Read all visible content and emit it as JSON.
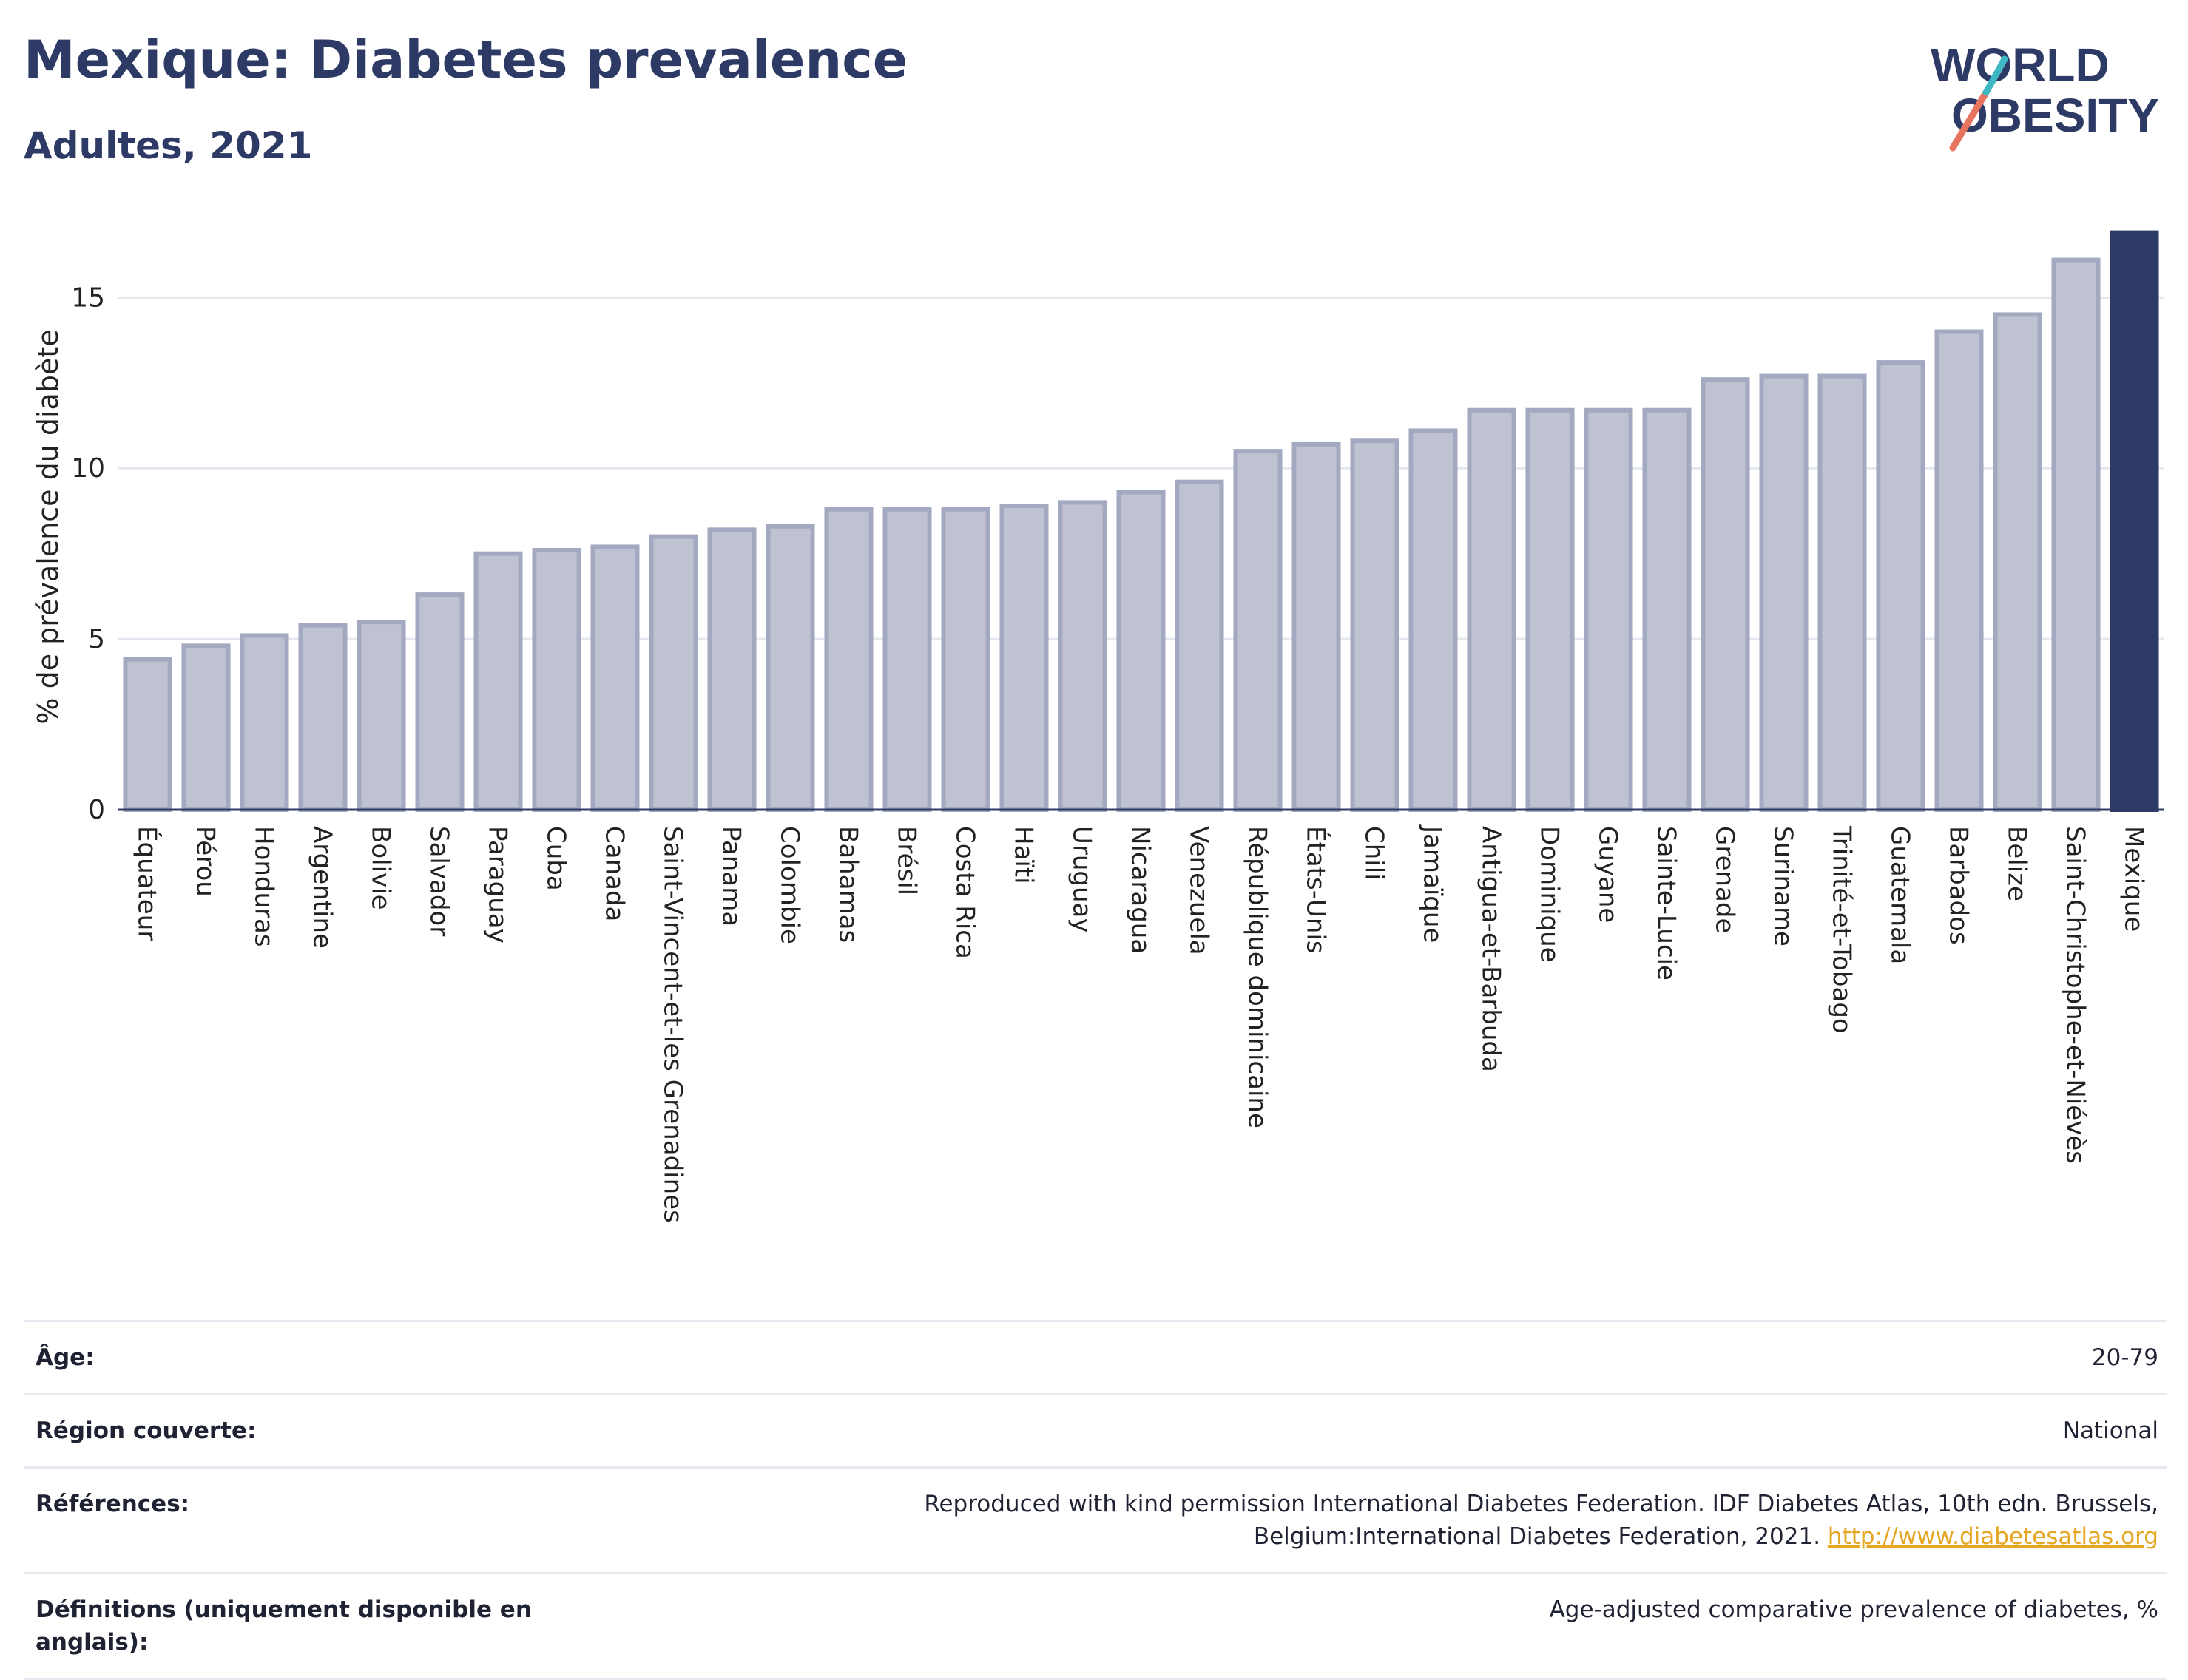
{
  "header": {
    "title": "Mexique: Diabetes prevalence",
    "subtitle": "Adultes, 2021"
  },
  "logo": {
    "line1": "WORLD",
    "line2": "OBESITY"
  },
  "chart_data": {
    "type": "bar",
    "ylabel": "% de prévalence du diabète",
    "ylim": [
      0,
      17
    ],
    "yticks": [
      0,
      5,
      10,
      15
    ],
    "grid": true,
    "highlight": "Mexique",
    "colors": {
      "bar": "#bfc3d1",
      "bar_border": "#a3a9c0",
      "highlight": "#2d3a66",
      "grid": "#e3e7ee",
      "axis": "#2d3a66"
    },
    "categories": [
      "Équateur",
      "Pérou",
      "Honduras",
      "Argentine",
      "Bolivie",
      "Salvador",
      "Paraguay",
      "Cuba",
      "Canada",
      "Saint-Vincent-et-les Grenadines",
      "Panama",
      "Colombie",
      "Bahamas",
      "Brésil",
      "Costa Rica",
      "Haïti",
      "Uruguay",
      "Nicaragua",
      "Venezuela",
      "République dominicaine",
      "États-Unis",
      "Chili",
      "Jamaïque",
      "Antigua-et-Barbuda",
      "Dominique",
      "Guyane",
      "Sainte-Lucie",
      "Grenade",
      "Suriname",
      "Trinité-et-Tobago",
      "Guatemala",
      "Barbados",
      "Belize",
      "Saint-Christophe-et-Niévès",
      "Mexique"
    ],
    "values": [
      4.4,
      4.8,
      5.1,
      5.4,
      5.5,
      6.3,
      7.5,
      7.6,
      7.7,
      8.0,
      8.2,
      8.3,
      8.8,
      8.8,
      8.8,
      8.9,
      9.0,
      9.3,
      9.6,
      10.5,
      10.7,
      10.8,
      11.1,
      11.7,
      11.7,
      11.7,
      11.7,
      12.6,
      12.7,
      12.7,
      13.1,
      14.0,
      14.5,
      16.1,
      16.9
    ]
  },
  "info_table": [
    {
      "label": "Âge:",
      "value": "20-79"
    },
    {
      "label": "Région couverte:",
      "value": "National"
    },
    {
      "label": "Références:",
      "value": "Reproduced with kind permission International Diabetes Federation.  IDF Diabetes Atlas, 10th edn. Brussels, Belgium:International Diabetes Federation, 2021. ",
      "link": "http://www.diabetesatlas.org"
    },
    {
      "label": "Définitions (uniquement disponible en anglais):",
      "value": "Age-adjusted comparative prevalence of diabetes, %"
    }
  ]
}
